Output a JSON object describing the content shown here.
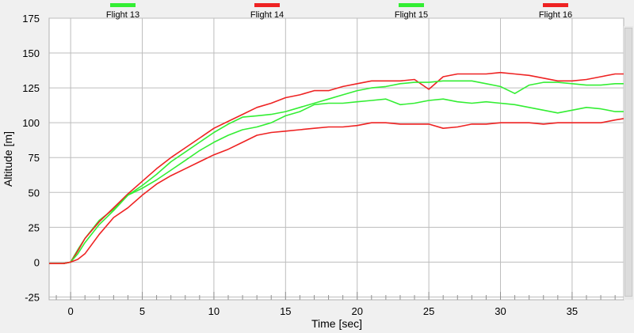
{
  "chart_data": {
    "type": "line",
    "xlabel": "Time [sec]",
    "ylabel": "Altitude [m]",
    "xlim": [
      -1.5,
      38.6
    ],
    "ylim": [
      -27,
      175
    ],
    "xticks": [
      0,
      5,
      10,
      15,
      20,
      25,
      30,
      35
    ],
    "yticks": [
      -25,
      0,
      25,
      50,
      75,
      100,
      125,
      150,
      175
    ],
    "grid": true,
    "legend_position": "top",
    "series": [
      {
        "name": "Flight 13",
        "color": "#33ee33",
        "x": [
          -1.5,
          -0.5,
          0,
          0.5,
          1,
          2,
          3,
          4,
          5,
          6,
          7,
          8,
          9,
          10,
          11,
          12,
          13,
          14,
          15,
          16,
          17,
          18,
          19,
          20,
          21,
          22,
          23,
          24,
          25,
          26,
          27,
          28,
          29,
          30,
          31,
          32,
          33,
          34,
          35,
          36,
          37,
          38,
          38.6
        ],
        "y": [
          -1,
          -1,
          0,
          9,
          17,
          30,
          38,
          48,
          53,
          59,
          66,
          73,
          80,
          86,
          91,
          95,
          97,
          100,
          105,
          108,
          113,
          114,
          114,
          115,
          116,
          117,
          113,
          114,
          116,
          117,
          115,
          114,
          115,
          114,
          113,
          111,
          109,
          107,
          109,
          111,
          110,
          108,
          108
        ]
      },
      {
        "name": "Flight 14",
        "color": "#ee2222",
        "x": [
          -1.5,
          -0.5,
          0,
          0.5,
          1,
          2,
          3,
          4,
          5,
          6,
          7,
          8,
          9,
          10,
          11,
          12,
          13,
          14,
          15,
          16,
          17,
          18,
          19,
          20,
          21,
          22,
          23,
          24,
          25,
          26,
          27,
          28,
          29,
          30,
          31,
          32,
          33,
          34,
          35,
          36,
          37,
          38,
          38.6
        ],
        "y": [
          -1,
          -1,
          0,
          8,
          17,
          29,
          39,
          49,
          58,
          67,
          75,
          82,
          89,
          96,
          101,
          106,
          111,
          114,
          118,
          120,
          123,
          123,
          126,
          128,
          130,
          130,
          130,
          131,
          124,
          133,
          135,
          135,
          135,
          136,
          135,
          134,
          132,
          130,
          130,
          131,
          133,
          135,
          135
        ]
      },
      {
        "name": "Flight 15",
        "color": "#33ee33",
        "x": [
          -1.5,
          -0.5,
          0,
          0.5,
          1,
          2,
          3,
          4,
          5,
          6,
          7,
          8,
          9,
          10,
          11,
          12,
          13,
          14,
          15,
          16,
          17,
          18,
          19,
          20,
          21,
          22,
          23,
          24,
          25,
          26,
          27,
          28,
          29,
          30,
          31,
          32,
          33,
          34,
          35,
          36,
          37,
          38,
          38.6
        ],
        "y": [
          -1,
          -1,
          0,
          6,
          14,
          27,
          37,
          48,
          55,
          63,
          72,
          79,
          86,
          93,
          99,
          104,
          105,
          106,
          108,
          111,
          114,
          117,
          120,
          123,
          125,
          126,
          128,
          129,
          129,
          130,
          130,
          130,
          128,
          126,
          121,
          127,
          129,
          129,
          128,
          127,
          127,
          128,
          128
        ]
      },
      {
        "name": "Flight 16",
        "color": "#ee2222",
        "x": [
          -1.5,
          -0.5,
          0,
          0.5,
          1,
          2,
          3,
          4,
          5,
          6,
          7,
          8,
          9,
          10,
          11,
          12,
          13,
          14,
          15,
          16,
          17,
          18,
          19,
          20,
          21,
          22,
          23,
          24,
          25,
          26,
          27,
          28,
          29,
          30,
          31,
          32,
          33,
          34,
          35,
          36,
          37,
          38,
          38.6
        ],
        "y": [
          -1,
          -1,
          0,
          2,
          6,
          20,
          32,
          39,
          48,
          56,
          62,
          67,
          72,
          77,
          81,
          86,
          91,
          93,
          94,
          95,
          96,
          97,
          97,
          98,
          100,
          100,
          99,
          99,
          99,
          96,
          97,
          99,
          99,
          100,
          100,
          100,
          99,
          100,
          100,
          100,
          100,
          102,
          103
        ]
      }
    ]
  }
}
